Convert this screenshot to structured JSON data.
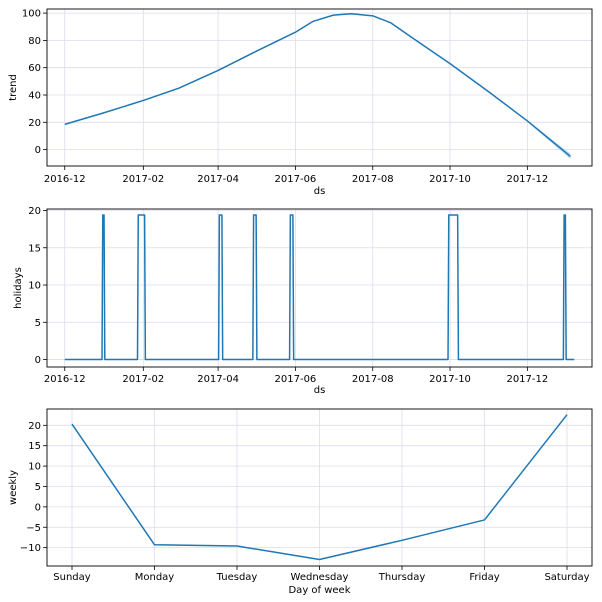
{
  "chart_data": [
    {
      "type": "line",
      "xlabel": "ds",
      "ylabel": "trend",
      "x_tick_labels": [
        "2016-12",
        "2017-02",
        "2017-04",
        "2017-06",
        "2017-08",
        "2017-10",
        "2017-12"
      ],
      "x_tick_dates": [
        "2016-12-01",
        "2017-02-01",
        "2017-04-01",
        "2017-06-01",
        "2017-08-01",
        "2017-10-01",
        "2017-12-01"
      ],
      "xlim": [
        "2016-11-17",
        "2018-01-21"
      ],
      "y_ticks": [
        0,
        20,
        40,
        60,
        80,
        100
      ],
      "ylim": [
        -12,
        103
      ],
      "grid": true,
      "line_color": "#1f77b4",
      "band_color": "#9ec9e8",
      "series": [
        {
          "x": [
            "2016-12-01",
            "2017-01-01",
            "2017-02-01",
            "2017-03-01",
            "2017-04-01",
            "2017-05-01",
            "2017-06-01",
            "2017-06-15",
            "2017-07-01",
            "2017-07-15",
            "2017-08-01",
            "2017-08-15",
            "2017-09-01",
            "2017-10-01",
            "2017-11-01",
            "2017-12-01",
            "2018-01-04"
          ],
          "y": [
            18.5,
            27,
            36,
            45,
            58,
            72,
            86,
            94,
            98.5,
            99.5,
            98,
            93,
            82,
            63,
            42,
            21,
            -5
          ],
          "lower": [
            18.5,
            27,
            36,
            45,
            58,
            72,
            86,
            94,
            98.5,
            99.5,
            98,
            93,
            82,
            63,
            42,
            20.5,
            -7
          ],
          "upper": [
            18.5,
            27,
            36,
            45,
            58,
            72,
            86,
            94,
            98.5,
            99.5,
            98,
            93,
            82,
            63,
            42,
            21.5,
            -3
          ]
        }
      ]
    },
    {
      "type": "line",
      "xlabel": "ds",
      "ylabel": "holidays",
      "x_tick_labels": [
        "2016-12",
        "2017-02",
        "2017-04",
        "2017-06",
        "2017-08",
        "2017-10",
        "2017-12"
      ],
      "x_tick_dates": [
        "2016-12-01",
        "2017-02-01",
        "2017-04-01",
        "2017-06-01",
        "2017-08-01",
        "2017-10-01",
        "2017-12-01"
      ],
      "xlim": [
        "2016-11-17",
        "2018-01-21"
      ],
      "y_ticks": [
        0,
        5,
        10,
        15,
        20
      ],
      "ylim": [
        -1,
        20.2
      ],
      "grid": true,
      "line_color": "#1f77b4",
      "baseline": 0,
      "holiday_value": 19.4,
      "holiday_spans": [
        [
          "2016-12-31",
          "2017-01-01"
        ],
        [
          "2017-01-28",
          "2017-02-02"
        ],
        [
          "2017-04-02",
          "2017-04-04"
        ],
        [
          "2017-04-29",
          "2017-05-01"
        ],
        [
          "2017-05-28",
          "2017-05-30"
        ],
        [
          "2017-09-30",
          "2017-10-07"
        ],
        [
          "2017-12-30",
          "2017-12-31"
        ]
      ],
      "series_end": "2018-01-07"
    },
    {
      "type": "line",
      "xlabel": "Day of week",
      "ylabel": "weekly",
      "categories": [
        "Sunday",
        "Monday",
        "Tuesday",
        "Wednesday",
        "Thursday",
        "Friday",
        "Saturday"
      ],
      "values": [
        20.3,
        -9.3,
        -9.6,
        -12.9,
        -8.2,
        -3.2,
        22.6
      ],
      "y_ticks": [
        -10,
        -5,
        0,
        5,
        10,
        15,
        20
      ],
      "ylim": [
        -14.5,
        24
      ],
      "grid": true,
      "line_color": "#1f77b4"
    }
  ]
}
